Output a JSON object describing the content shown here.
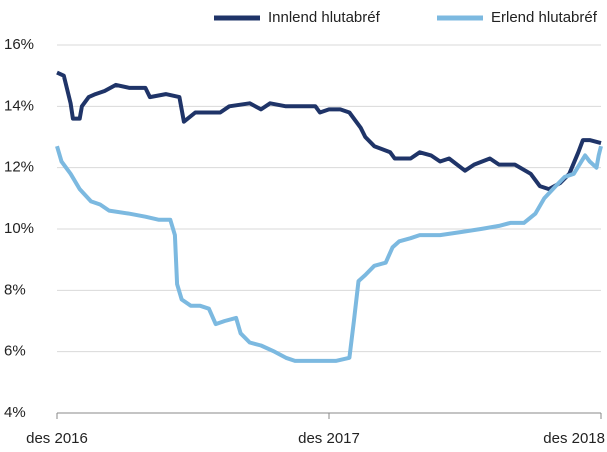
{
  "chart_data": {
    "type": "line",
    "xlim": [
      0,
      24
    ],
    "xticks": [
      {
        "value": 0,
        "label": "des 2016"
      },
      {
        "value": 12,
        "label": "des 2017"
      },
      {
        "value": 24,
        "label": "des 2018"
      }
    ],
    "ylim": [
      4,
      16
    ],
    "yticks": [
      {
        "value": 4,
        "label": "4%"
      },
      {
        "value": 6,
        "label": "6%"
      },
      {
        "value": 8,
        "label": "8%"
      },
      {
        "value": 10,
        "label": "10%"
      },
      {
        "value": 12,
        "label": "12%"
      },
      {
        "value": 14,
        "label": "14%"
      },
      {
        "value": 16,
        "label": "16%"
      }
    ],
    "grid": true,
    "legend": "top",
    "series": [
      {
        "name": "Innlend hlutabréf",
        "color": "#1f3468",
        "x": [
          0,
          0.3,
          0.6,
          0.7,
          1.0,
          1.1,
          1.4,
          1.7,
          2.1,
          2.6,
          3.2,
          3.9,
          4.1,
          4.8,
          5.4,
          5.6,
          6.1,
          6.7,
          7.2,
          7.6,
          8.5,
          9.0,
          9.4,
          10.1,
          10.7,
          11.4,
          11.6,
          12.0,
          12.5,
          12.9,
          13.4,
          13.6,
          14.0,
          14.7,
          14.9,
          15.6,
          16.0,
          16.5,
          16.9,
          17.3,
          18.0,
          18.4,
          19.1,
          19.5,
          20.2,
          20.9,
          21.3,
          21.7,
          22.2,
          22.6,
          23.0,
          23.2,
          23.5,
          24.0
        ],
        "values": [
          15.1,
          15.0,
          14.1,
          13.6,
          13.6,
          14.0,
          14.3,
          14.4,
          14.5,
          14.7,
          14.6,
          14.6,
          14.3,
          14.4,
          14.3,
          13.5,
          13.8,
          13.8,
          13.8,
          14.0,
          14.1,
          13.9,
          14.1,
          14.0,
          14.0,
          14.0,
          13.8,
          13.9,
          13.9,
          13.8,
          13.3,
          13.0,
          12.7,
          12.5,
          12.3,
          12.3,
          12.5,
          12.4,
          12.2,
          12.3,
          11.9,
          12.1,
          12.3,
          12.1,
          12.1,
          11.8,
          11.4,
          11.3,
          11.5,
          11.8,
          12.5,
          12.9,
          12.9,
          12.8
        ]
      },
      {
        "name": "Erlend hlutabréf",
        "color": "#7cb9e0",
        "x": [
          0,
          0.2,
          0.6,
          1.0,
          1.5,
          1.9,
          2.3,
          3.2,
          3.9,
          4.5,
          5.0,
          5.2,
          5.3,
          5.5,
          5.9,
          6.3,
          6.7,
          7.0,
          7.4,
          7.9,
          8.1,
          8.5,
          9.0,
          9.6,
          10.1,
          10.5,
          11.2,
          11.6,
          12.3,
          12.9,
          13.1,
          13.3,
          13.6,
          14.0,
          14.5,
          14.8,
          15.1,
          15.6,
          16.0,
          16.9,
          17.8,
          18.7,
          19.5,
          20.0,
          20.6,
          21.1,
          21.5,
          22.0,
          22.4,
          22.8,
          23.3,
          23.5,
          23.8,
          23.9,
          24.0
        ],
        "values": [
          12.7,
          12.2,
          11.8,
          11.3,
          10.9,
          10.8,
          10.6,
          10.5,
          10.4,
          10.3,
          10.3,
          9.8,
          8.2,
          7.7,
          7.5,
          7.5,
          7.4,
          6.9,
          7.0,
          7.1,
          6.6,
          6.3,
          6.2,
          6.0,
          5.8,
          5.7,
          5.7,
          5.7,
          5.7,
          5.8,
          7.0,
          8.3,
          8.5,
          8.8,
          8.9,
          9.4,
          9.6,
          9.7,
          9.8,
          9.8,
          9.9,
          10.0,
          10.1,
          10.2,
          10.2,
          10.5,
          11.0,
          11.4,
          11.7,
          11.8,
          12.4,
          12.2,
          12.0,
          12.4,
          12.7
        ]
      }
    ]
  }
}
